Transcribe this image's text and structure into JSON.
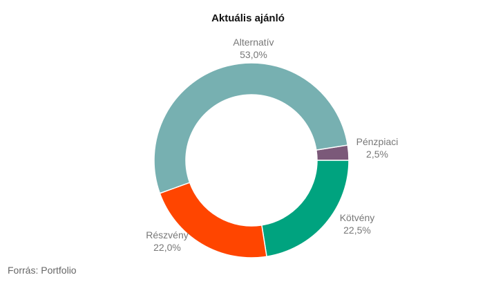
{
  "chart_data": {
    "type": "pie",
    "donut": true,
    "title": "Aktuális ajánló",
    "slices": [
      {
        "label": "Pénzpiaci",
        "value": 2.5,
        "value_label": "2,5%",
        "color": "#7b5979"
      },
      {
        "label": "Kötvény",
        "value": 22.5,
        "value_label": "22,5%",
        "color": "#00a37f"
      },
      {
        "label": "Részvény",
        "value": 22.0,
        "value_label": "22,0%",
        "color": "#ff4500"
      },
      {
        "label": "Alternatív",
        "value": 53.0,
        "value_label": "53,0%",
        "color": "#77b0b1"
      }
    ]
  },
  "source": "Forrás: Portfolio"
}
